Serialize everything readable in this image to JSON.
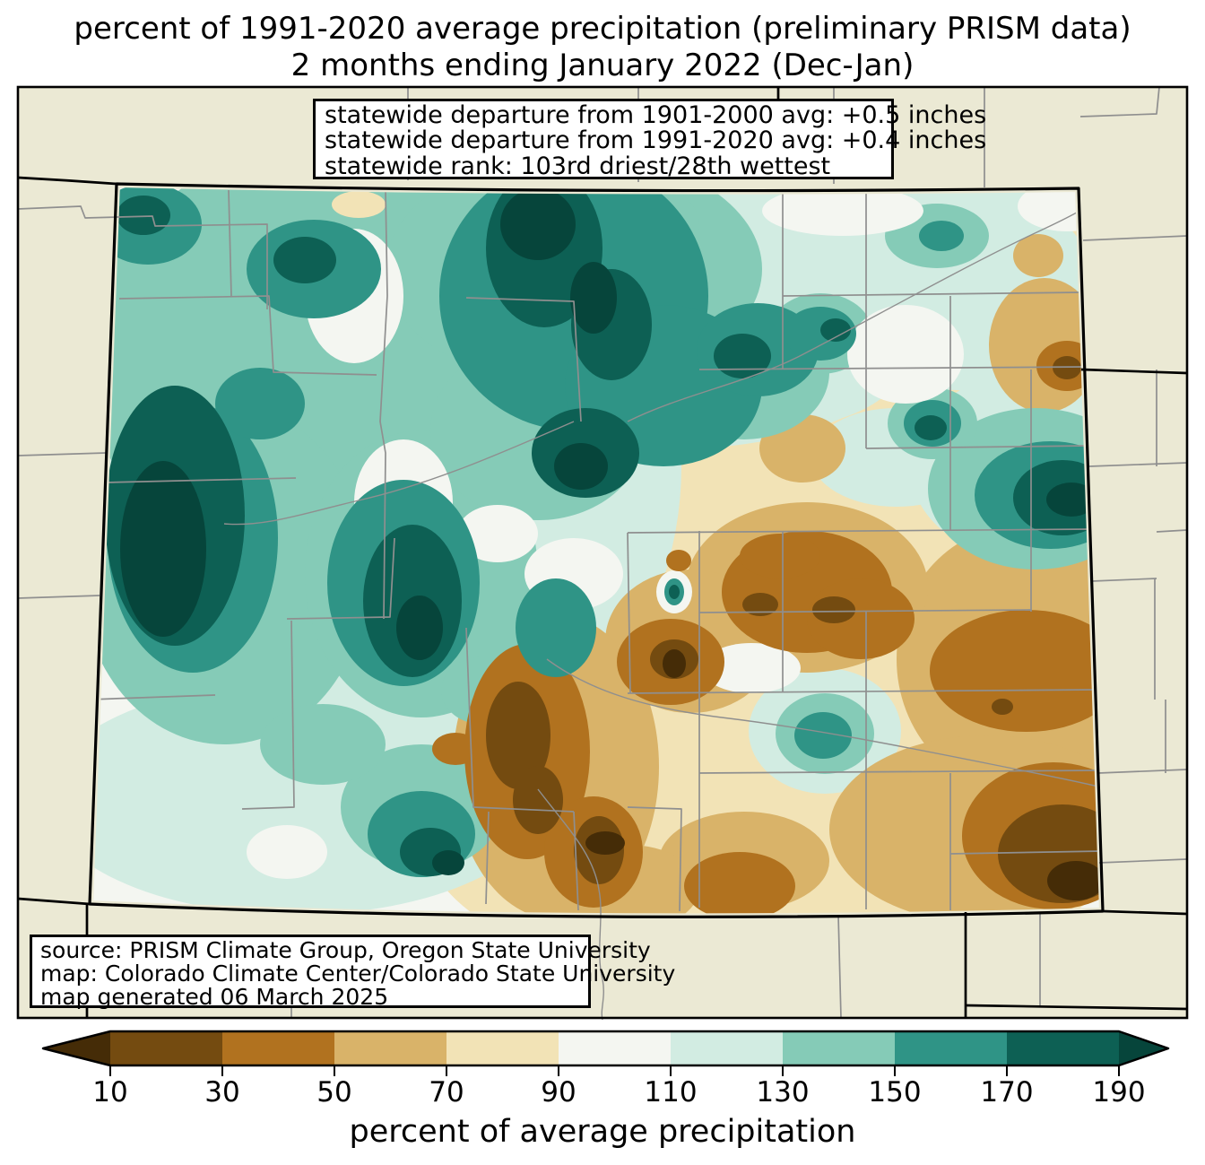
{
  "title": {
    "line1": "percent of 1991-2020 average precipitation (preliminary PRISM data)",
    "line2": "2 months ending January 2022 (Dec-Jan)"
  },
  "stats_box": {
    "lines": [
      "statewide departure from 1901-2000 avg: +0.5 inches",
      "statewide departure from 1991-2020 avg: +0.4 inches",
      "statewide rank: 103rd driest/28th wettest"
    ]
  },
  "source_box": {
    "lines": [
      "source: PRISM Climate Group, Oregon State University",
      "map: Colorado Climate Center/Colorado State University",
      "map generated 06 March 2025"
    ]
  },
  "map": {
    "outside_color": "#ebe9d4",
    "county_line_color": "#8f8f8f",
    "state_border_color": "#000000"
  },
  "colorbar": {
    "axis_label": "percent of average precipitation",
    "ticks": [
      "10",
      "30",
      "50",
      "70",
      "90",
      "110",
      "130",
      "150",
      "170",
      "190"
    ],
    "levels": [
      {
        "range": "<10",
        "color": "#452c07"
      },
      {
        "range": "10-30",
        "color": "#744b10"
      },
      {
        "range": "30-50",
        "color": "#b1721f"
      },
      {
        "range": "50-70",
        "color": "#d9b369"
      },
      {
        "range": "70-90",
        "color": "#f2e3b6"
      },
      {
        "range": "90-110",
        "color": "#f4f6f1"
      },
      {
        "range": "110-130",
        "color": "#d2ece2"
      },
      {
        "range": "130-150",
        "color": "#85cbb7"
      },
      {
        "range": "150-170",
        "color": "#2f9486"
      },
      {
        "range": "170-190",
        "color": "#0d6054"
      },
      {
        "range": ">190",
        "color": "#06453b"
      }
    ]
  }
}
